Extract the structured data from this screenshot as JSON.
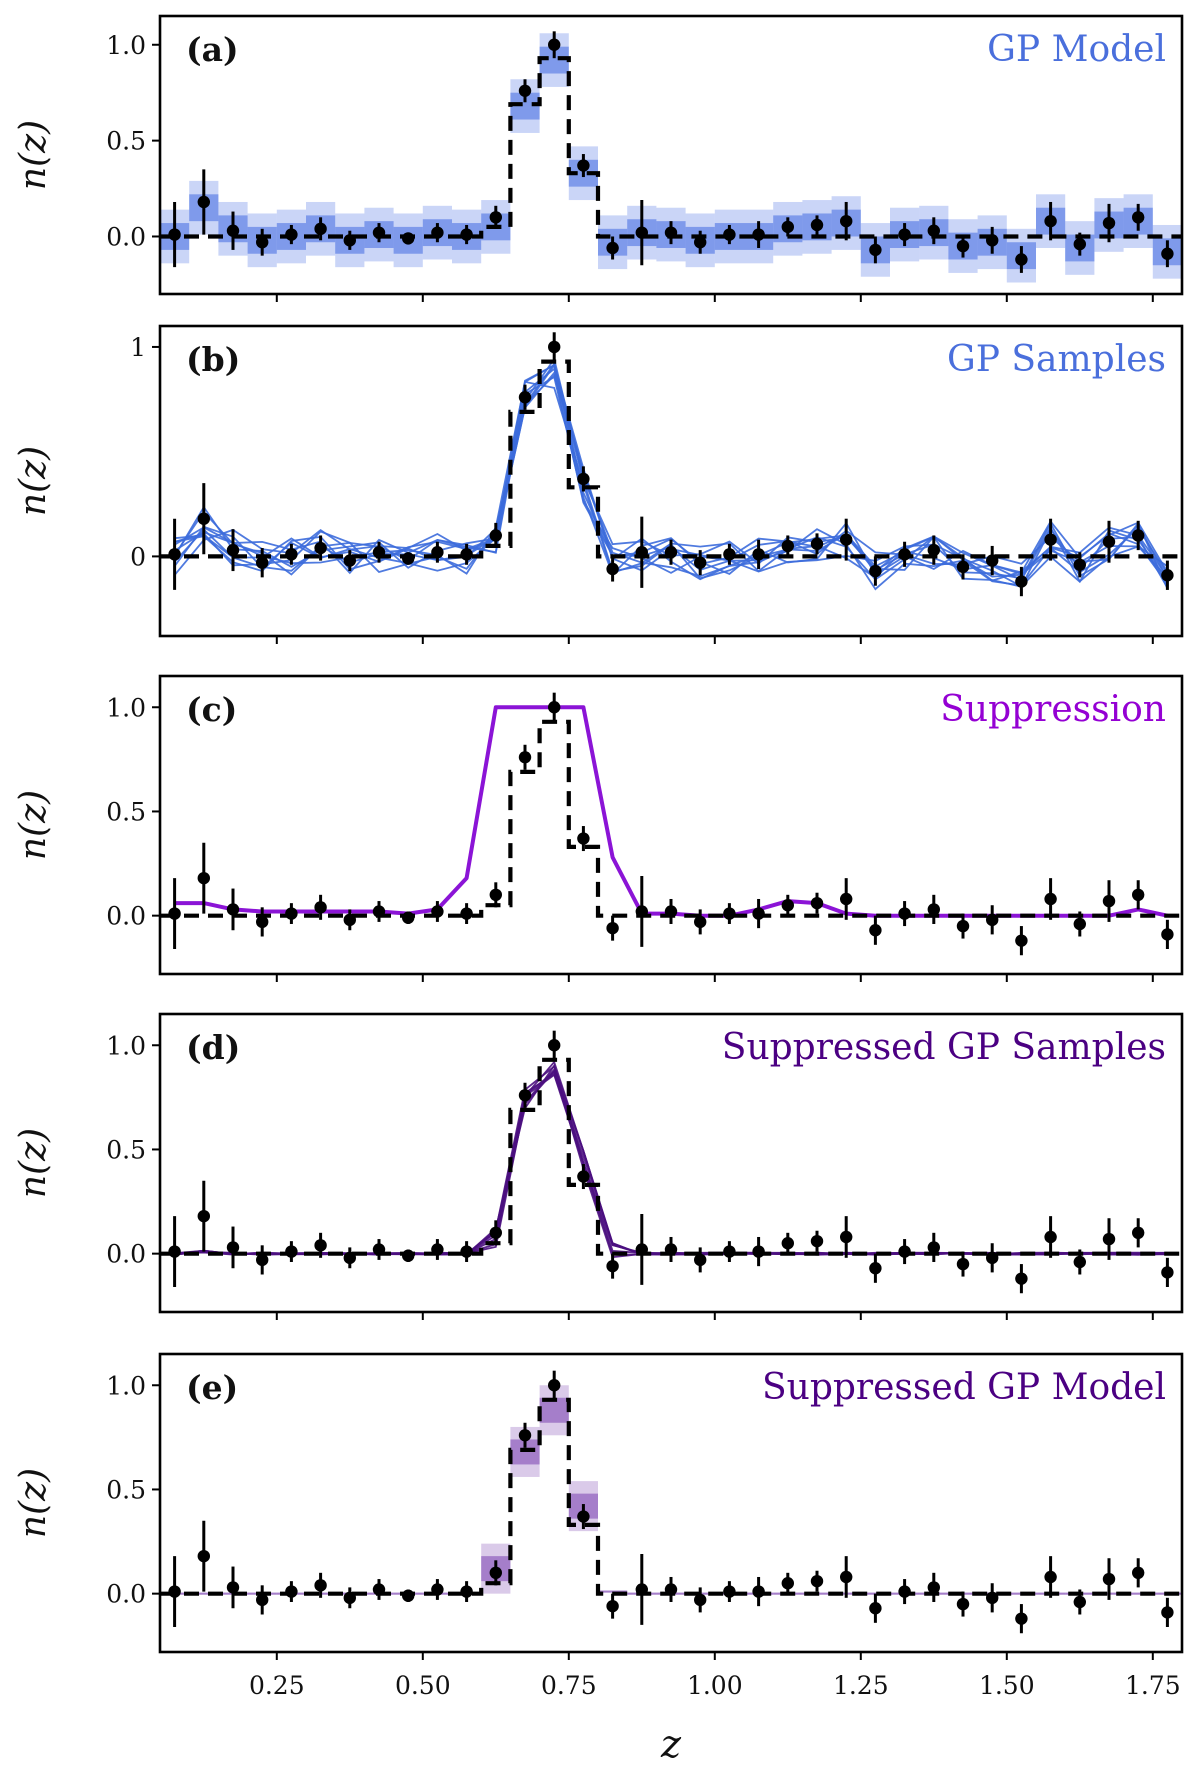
{
  "chart_data": [
    {
      "type": "line",
      "tag": "(a)",
      "title": "GP Model",
      "title_color": "#4a6fdc",
      "ylabel": "n(z)",
      "xlim": [
        0.05,
        1.8
      ],
      "ylim": [
        -0.3,
        1.15
      ],
      "yticks": [
        0.0,
        0.5,
        1.0
      ],
      "ytick_labels": [
        "0.0",
        "0.5",
        "1.0"
      ],
      "bands": {
        "color": "#4169e1",
        "median": [
          0.0,
          0.15,
          0.04,
          -0.02,
          0.0,
          0.04,
          -0.02,
          0.01,
          -0.02,
          0.02,
          0.0,
          0.05,
          0.68,
          0.92,
          0.33,
          -0.03,
          0.02,
          0.01,
          -0.02,
          0.0,
          0.0,
          0.04,
          0.05,
          0.07,
          -0.07,
          0.01,
          0.02,
          -0.05,
          -0.03,
          -0.1,
          0.08,
          -0.06,
          0.06,
          0.08,
          -0.08
        ],
        "inner": 0.07,
        "outer": 0.14
      }
    },
    {
      "type": "line",
      "tag": "(b)",
      "title": "GP Samples",
      "title_color": "#4a6fdc",
      "ylabel": "n(z)",
      "xlim": [
        0.05,
        1.8
      ],
      "ylim": [
        -0.38,
        1.1
      ],
      "yticks": [
        0,
        1
      ],
      "ytick_labels": [
        "0",
        "1"
      ],
      "samples": {
        "color": "#3c6cdc",
        "count": 10,
        "spread": 0.09,
        "mean": [
          0.0,
          0.15,
          0.04,
          -0.02,
          0.0,
          0.04,
          -0.02,
          0.01,
          -0.02,
          0.02,
          0.0,
          0.05,
          0.78,
          0.86,
          0.33,
          -0.03,
          0.02,
          0.01,
          -0.02,
          0.0,
          0.0,
          0.04,
          0.05,
          0.07,
          -0.07,
          0.01,
          0.02,
          -0.05,
          -0.03,
          -0.1,
          0.08,
          -0.06,
          0.06,
          0.08,
          -0.08
        ]
      }
    },
    {
      "type": "line",
      "tag": "(c)",
      "title": "Suppression",
      "title_color": "#9400d3",
      "ylabel": "n(z)",
      "xlim": [
        0.05,
        1.8
      ],
      "ylim": [
        -0.28,
        1.15
      ],
      "yticks": [
        0.0,
        0.5,
        1.0
      ],
      "ytick_labels": [
        "0.0",
        "0.5",
        "1.0"
      ],
      "line": {
        "color": "#8b14d6",
        "values": [
          0.06,
          0.06,
          0.03,
          0.02,
          0.02,
          0.02,
          0.02,
          0.02,
          0.01,
          0.03,
          0.18,
          1.0,
          1.0,
          1.0,
          1.0,
          0.28,
          0.01,
          0.01,
          0.0,
          0.0,
          0.03,
          0.07,
          0.06,
          0.01,
          0.0,
          0.0,
          0.0,
          0.0,
          0.0,
          0.0,
          0.0,
          0.0,
          0.0,
          0.03,
          0.0
        ]
      }
    },
    {
      "type": "line",
      "tag": "(d)",
      "title": "Suppressed GP Samples",
      "title_color": "#4b0082",
      "ylabel": "n(z)",
      "xlim": [
        0.05,
        1.8
      ],
      "ylim": [
        -0.28,
        1.15
      ],
      "yticks": [
        0.0,
        0.5,
        1.0
      ],
      "ytick_labels": [
        "0.0",
        "0.5",
        "1.0"
      ],
      "samples": {
        "color": "#4b1080",
        "count": 8,
        "spread": 0.05,
        "mean": [
          0.0,
          0.01,
          0.0,
          0.0,
          0.0,
          0.0,
          0.0,
          0.0,
          0.0,
          0.0,
          0.0,
          0.08,
          0.74,
          0.9,
          0.45,
          0.02,
          0.0,
          0.0,
          0.0,
          0.0,
          0.0,
          0.0,
          0.0,
          0.0,
          0.0,
          0.0,
          0.0,
          0.0,
          0.0,
          0.0,
          0.0,
          0.0,
          0.0,
          0.0,
          0.0
        ]
      }
    },
    {
      "type": "line",
      "tag": "(e)",
      "title": "Suppressed GP Model",
      "title_color": "#4b0082",
      "ylabel": "n(z)",
      "xlabel": "z",
      "xlim": [
        0.05,
        1.8
      ],
      "ylim": [
        -0.28,
        1.15
      ],
      "yticks": [
        0.0,
        0.5,
        1.0
      ],
      "ytick_labels": [
        "0.0",
        "0.5",
        "1.0"
      ],
      "xticks": [
        0.25,
        0.5,
        0.75,
        1.0,
        1.25,
        1.5,
        1.75
      ],
      "xtick_labels": [
        "0.25",
        "0.50",
        "0.75",
        "1.00",
        "1.25",
        "1.50",
        "1.75"
      ],
      "bands": {
        "color": "#7a3fb0",
        "median": [
          0.0,
          0.0,
          0.0,
          0.0,
          0.0,
          0.0,
          0.0,
          0.0,
          0.0,
          0.0,
          0.0,
          0.12,
          0.68,
          0.88,
          0.42,
          0.01,
          0.0,
          0.0,
          0.0,
          0.0,
          0.0,
          0.0,
          0.0,
          0.0,
          0.0,
          0.0,
          0.0,
          0.0,
          0.0,
          0.0,
          0.0,
          0.0,
          0.0,
          0.0,
          0.0
        ],
        "inner": 0.06,
        "outer": 0.12,
        "min_width": 0.005
      }
    }
  ],
  "shared": {
    "bin_edges": [
      0.05,
      0.1,
      0.15,
      0.2,
      0.25,
      0.3,
      0.35,
      0.4,
      0.45,
      0.5,
      0.55,
      0.6,
      0.65,
      0.7,
      0.75,
      0.8,
      0.85,
      0.9,
      0.95,
      1.0,
      1.05,
      1.1,
      1.15,
      1.2,
      1.25,
      1.3,
      1.35,
      1.4,
      1.45,
      1.5,
      1.55,
      1.6,
      1.65,
      1.7,
      1.75,
      1.8
    ],
    "true_nz": [
      0,
      0,
      0,
      0,
      0,
      0,
      0,
      0,
      0,
      0,
      0,
      0.05,
      0.69,
      0.93,
      0.33,
      0,
      0,
      0,
      0,
      0,
      0,
      0,
      0,
      0,
      0,
      0,
      0,
      0,
      0,
      0,
      0,
      0,
      0,
      0,
      0
    ],
    "points_x": [
      0.075,
      0.125,
      0.175,
      0.225,
      0.275,
      0.325,
      0.375,
      0.425,
      0.475,
      0.525,
      0.575,
      0.625,
      0.675,
      0.725,
      0.775,
      0.825,
      0.875,
      0.925,
      0.975,
      1.025,
      1.075,
      1.125,
      1.175,
      1.225,
      1.275,
      1.325,
      1.375,
      1.425,
      1.475,
      1.525,
      1.575,
      1.625,
      1.675,
      1.725,
      1.775
    ],
    "points_y": [
      0.01,
      0.18,
      0.03,
      -0.03,
      0.01,
      0.04,
      -0.02,
      0.02,
      -0.01,
      0.02,
      0.01,
      0.1,
      0.76,
      1.0,
      0.37,
      -0.06,
      0.02,
      0.02,
      -0.03,
      0.01,
      0.01,
      0.05,
      0.06,
      0.08,
      -0.07,
      0.01,
      0.03,
      -0.05,
      -0.02,
      -0.12,
      0.08,
      -0.04,
      0.07,
      0.1,
      -0.09
    ],
    "points_err": [
      0.17,
      0.17,
      0.1,
      0.07,
      0.05,
      0.06,
      0.05,
      0.05,
      0.03,
      0.05,
      0.05,
      0.06,
      0.06,
      0.07,
      0.06,
      0.06,
      0.17,
      0.06,
      0.06,
      0.05,
      0.07,
      0.05,
      0.05,
      0.1,
      0.07,
      0.06,
      0.07,
      0.06,
      0.07,
      0.07,
      0.1,
      0.06,
      0.1,
      0.07,
      0.07
    ]
  }
}
